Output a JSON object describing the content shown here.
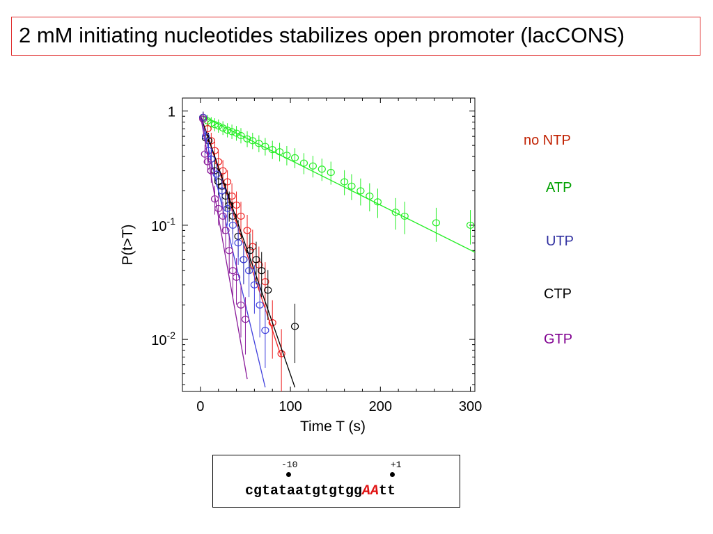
{
  "title": "2 mM initiating nucleotides stabilizes open promoter (lacCONS)",
  "chart_data": {
    "type": "scatter",
    "xlabel": "Time T (s)",
    "ylabel": "P(t>T)",
    "xlim": [
      -20,
      305
    ],
    "ylim": [
      0.0035,
      1.3
    ],
    "yscale": "log",
    "xticks": [
      0,
      100,
      200,
      300
    ],
    "yticks": [
      {
        "value": 1,
        "base": "1",
        "exp": ""
      },
      {
        "value": 0.1,
        "base": "10",
        "exp": "-1"
      },
      {
        "value": 0.01,
        "base": "10",
        "exp": "-2"
      }
    ],
    "series": [
      {
        "name": "ATP",
        "color": "#22ee22",
        "x": [
          3,
          8,
          12,
          16,
          20,
          25,
          30,
          35,
          40,
          45,
          52,
          58,
          65,
          72,
          80,
          88,
          96,
          105,
          115,
          125,
          135,
          145,
          160,
          168,
          178,
          188,
          197,
          217,
          227,
          262,
          300
        ],
        "y": [
          0.88,
          0.82,
          0.78,
          0.76,
          0.74,
          0.71,
          0.68,
          0.66,
          0.64,
          0.61,
          0.57,
          0.55,
          0.52,
          0.49,
          0.46,
          0.44,
          0.41,
          0.39,
          0.35,
          0.33,
          0.31,
          0.29,
          0.24,
          0.22,
          0.2,
          0.18,
          0.16,
          0.13,
          0.12,
          0.105,
          0.1
        ],
        "fit": [
          [
            0,
            0.92
          ],
          [
            305,
            0.058
          ]
        ]
      },
      {
        "name": "no NTP",
        "color": "#ee2020",
        "x": [
          3,
          8,
          12,
          16,
          20,
          25,
          30,
          35,
          40,
          45,
          52,
          58,
          65,
          72,
          80,
          90
        ],
        "y": [
          0.88,
          0.7,
          0.55,
          0.45,
          0.36,
          0.3,
          0.24,
          0.18,
          0.15,
          0.12,
          0.09,
          0.065,
          0.045,
          0.032,
          0.014,
          0.0075
        ],
        "fit": [
          [
            0,
            0.92
          ],
          [
            90,
            0.007
          ]
        ]
      },
      {
        "name": "CTP",
        "color": "#000000",
        "x": [
          3,
          6,
          9,
          12,
          16,
          20,
          24,
          28,
          32,
          36,
          42,
          48,
          55,
          62,
          68,
          75,
          105
        ],
        "y": [
          0.88,
          0.58,
          0.55,
          0.38,
          0.3,
          0.24,
          0.22,
          0.18,
          0.15,
          0.12,
          0.08,
          0.05,
          0.06,
          0.05,
          0.04,
          0.027,
          0.013
        ],
        "fit": [
          [
            0,
            0.92
          ],
          [
            105,
            0.0038
          ]
        ]
      },
      {
        "name": "UTP",
        "color": "#4040dd",
        "x": [
          3,
          6,
          9,
          12,
          18,
          24,
          30,
          36,
          42,
          48,
          54,
          60,
          66,
          72
        ],
        "y": [
          0.88,
          0.6,
          0.45,
          0.38,
          0.28,
          0.2,
          0.14,
          0.1,
          0.07,
          0.05,
          0.04,
          0.03,
          0.02,
          0.012
        ],
        "fit": [
          [
            0,
            0.92
          ],
          [
            72,
            0.0038
          ]
        ]
      },
      {
        "name": "GTP",
        "color": "#8a1a9a",
        "x": [
          3,
          5,
          8,
          12,
          16,
          20,
          25,
          28,
          32,
          36,
          40,
          45,
          50
        ],
        "y": [
          0.85,
          0.42,
          0.36,
          0.3,
          0.17,
          0.14,
          0.12,
          0.09,
          0.06,
          0.04,
          0.035,
          0.02,
          0.015
        ],
        "fit": [
          [
            0,
            0.92
          ],
          [
            52,
            0.0045
          ]
        ]
      }
    ]
  },
  "legend": [
    {
      "label": "no NTP",
      "color": "#c02000"
    },
    {
      "label": "ATP",
      "color": "#00a000"
    },
    {
      "label": "UTP",
      "color": "#3030a0"
    },
    {
      "label": "CTP",
      "color": "#000000"
    },
    {
      "label": "GTP",
      "color": "#800090"
    }
  ],
  "sequence": {
    "prefix": "cgtataatgtgtgg",
    "highlight": "AA",
    "suffix": "tt",
    "marker_minus": "-10",
    "marker_plus": "+1"
  }
}
